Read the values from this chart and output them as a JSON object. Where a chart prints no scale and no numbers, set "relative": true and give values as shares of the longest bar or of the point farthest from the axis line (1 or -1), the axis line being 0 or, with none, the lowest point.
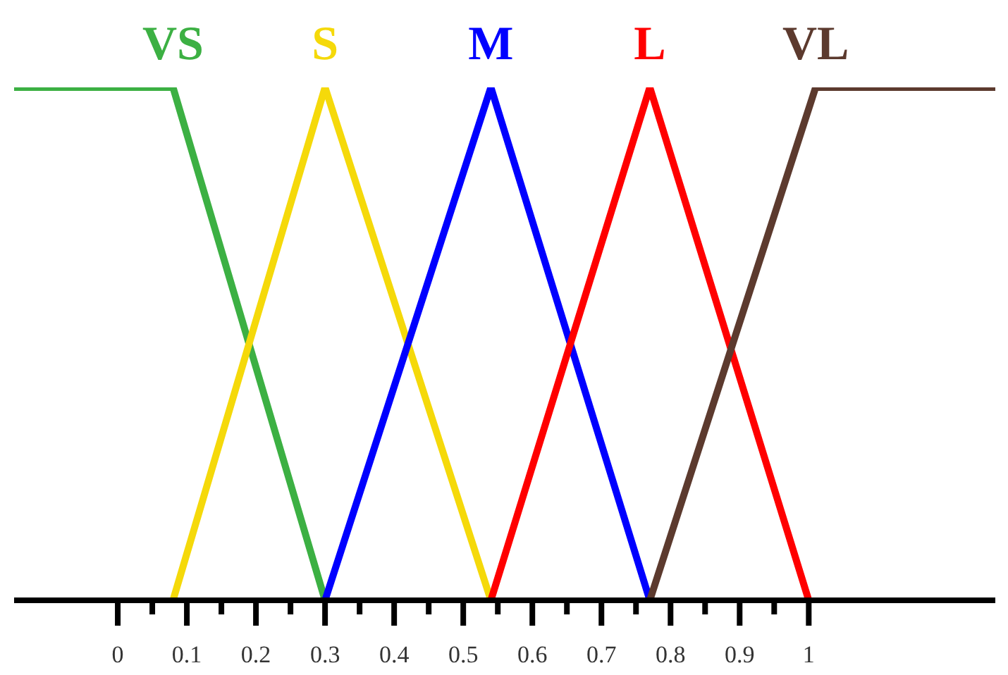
{
  "chart_data": {
    "type": "line",
    "relative": true,
    "xlim": [
      -0.15,
      1.27
    ],
    "xticks": [
      0,
      {
        "value": 0.05,
        "label": null
      },
      0.1,
      {
        "value": 0.15,
        "label": null
      },
      0.2,
      {
        "value": 0.25,
        "label": null
      },
      0.3,
      {
        "value": 0.35,
        "label": null
      },
      0.4,
      {
        "value": 0.45,
        "label": null
      },
      0.5,
      {
        "value": 0.55,
        "label": null
      },
      0.6,
      {
        "value": 0.65,
        "label": null
      },
      0.7,
      {
        "value": 0.75,
        "label": null
      },
      0.8,
      {
        "value": 0.85,
        "label": null
      },
      0.9,
      {
        "value": 0.95,
        "label": null
      },
      1
    ],
    "line_style": "solid",
    "series": [
      {
        "name": "VS",
        "color": "#3cb043",
        "x": [
          -0.15,
          0.08,
          0.3
        ],
        "values": [
          1,
          1,
          0
        ]
      },
      {
        "name": "S",
        "color": "#f5d90a",
        "x": [
          0.08,
          0.3,
          0.54
        ],
        "values": [
          0,
          1,
          0
        ]
      },
      {
        "name": "M",
        "color": "#0000ff",
        "x": [
          0.3,
          0.54,
          0.77
        ],
        "values": [
          0,
          1,
          0
        ]
      },
      {
        "name": "L",
        "color": "#ff0000",
        "x": [
          0.54,
          0.77,
          1.0
        ],
        "values": [
          0,
          1,
          0
        ]
      },
      {
        "name": "VL",
        "color": "#5c3a2e",
        "x": [
          0.77,
          1.01,
          1.27
        ],
        "values": [
          0,
          1,
          1
        ]
      }
    ]
  }
}
